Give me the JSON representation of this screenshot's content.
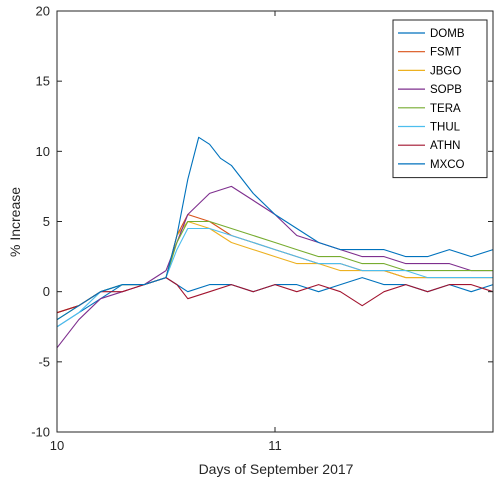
{
  "chart_data": {
    "type": "line",
    "title": "",
    "xlabel": "Days of September 2017",
    "ylabel": "% Increase",
    "xlim": [
      10,
      12
    ],
    "ylim": [
      -10,
      20
    ],
    "x_ticks": [
      {
        "value": 10,
        "label": "10"
      },
      {
        "value": 11,
        "label": "11"
      }
    ],
    "y_ticks": [
      {
        "value": -10,
        "label": "-10"
      },
      {
        "value": -5,
        "label": "-5"
      },
      {
        "value": 0,
        "label": "0"
      },
      {
        "value": 5,
        "label": "5"
      },
      {
        "value": 10,
        "label": "10"
      },
      {
        "value": 15,
        "label": "15"
      },
      {
        "value": 20,
        "label": "20"
      }
    ],
    "grid": false,
    "legend_position": "top-right",
    "series": [
      {
        "name": "DOMB",
        "color": "#0072BD",
        "x": [
          10.0,
          10.1,
          10.2,
          10.3,
          10.4,
          10.5,
          10.55,
          10.6,
          10.7,
          10.8,
          10.9,
          11.0,
          11.1,
          11.2,
          11.3,
          11.4,
          11.5,
          11.6,
          11.7,
          11.8,
          11.9,
          12.0
        ],
        "y": [
          -2.5,
          -1.5,
          -0.5,
          0.5,
          0.5,
          1.0,
          0.5,
          0.0,
          0.5,
          0.5,
          0.0,
          0.5,
          0.5,
          0.0,
          0.5,
          1.0,
          0.5,
          0.5,
          0.0,
          0.5,
          0.0,
          0.5
        ]
      },
      {
        "name": "FSMT",
        "color": "#D95319",
        "x": [
          10.0,
          10.1,
          10.2,
          10.3,
          10.4,
          10.5,
          10.55,
          10.6,
          10.7,
          10.8,
          10.9,
          11.0,
          11.1,
          11.2,
          11.3,
          11.4,
          11.5,
          11.6,
          11.7,
          11.8,
          11.9,
          12.0
        ],
        "y": [
          -1.5,
          -1.0,
          0.0,
          0.5,
          0.5,
          1.0,
          4.0,
          5.5,
          5.0,
          4.0,
          3.5,
          3.0,
          2.5,
          2.0,
          2.0,
          1.5,
          1.5,
          1.0,
          1.0,
          1.0,
          1.0,
          1.0
        ]
      },
      {
        "name": "JBGO",
        "color": "#EDB120",
        "x": [
          10.0,
          10.1,
          10.2,
          10.3,
          10.4,
          10.5,
          10.55,
          10.6,
          10.7,
          10.8,
          10.9,
          11.0,
          11.1,
          11.2,
          11.3,
          11.4,
          11.5,
          11.6,
          11.7,
          11.8,
          11.9,
          12.0
        ],
        "y": [
          -1.5,
          -1.0,
          0.0,
          0.5,
          0.5,
          1.0,
          4.0,
          5.0,
          4.5,
          3.5,
          3.0,
          2.5,
          2.0,
          2.0,
          1.5,
          1.5,
          1.5,
          1.0,
          1.0,
          1.0,
          1.0,
          1.0
        ]
      },
      {
        "name": "SOPB",
        "color": "#7E2F8E",
        "x": [
          10.0,
          10.1,
          10.2,
          10.3,
          10.4,
          10.5,
          10.55,
          10.6,
          10.7,
          10.8,
          10.9,
          11.0,
          11.1,
          11.2,
          11.3,
          11.4,
          11.5,
          11.6,
          11.7,
          11.8,
          11.9,
          12.0
        ],
        "y": [
          -4.0,
          -2.0,
          -0.5,
          0.0,
          0.5,
          1.5,
          3.5,
          5.5,
          7.0,
          7.5,
          6.5,
          5.5,
          4.0,
          3.5,
          3.0,
          2.5,
          2.5,
          2.0,
          2.0,
          2.0,
          1.5,
          1.5
        ]
      },
      {
        "name": "TERA",
        "color": "#77AC30",
        "x": [
          10.0,
          10.1,
          10.2,
          10.3,
          10.4,
          10.5,
          10.55,
          10.6,
          10.7,
          10.8,
          10.9,
          11.0,
          11.1,
          11.2,
          11.3,
          11.4,
          11.5,
          11.6,
          11.7,
          11.8,
          11.9,
          12.0
        ],
        "y": [
          -2.0,
          -1.0,
          0.0,
          0.5,
          0.5,
          1.0,
          3.5,
          5.0,
          5.0,
          4.5,
          4.0,
          3.5,
          3.0,
          2.5,
          2.5,
          2.0,
          2.0,
          1.5,
          1.5,
          1.5,
          1.5,
          1.5
        ]
      },
      {
        "name": "THUL",
        "color": "#4DBEEE",
        "x": [
          10.0,
          10.1,
          10.2,
          10.3,
          10.4,
          10.5,
          10.55,
          10.6,
          10.7,
          10.8,
          10.9,
          11.0,
          11.1,
          11.2,
          11.3,
          11.4,
          11.5,
          11.6,
          11.7,
          11.8,
          11.9,
          12.0
        ],
        "y": [
          -2.5,
          -1.5,
          0.0,
          0.5,
          0.5,
          1.0,
          3.0,
          4.5,
          4.5,
          4.0,
          3.5,
          3.0,
          2.5,
          2.0,
          2.0,
          1.5,
          1.5,
          1.5,
          1.0,
          1.0,
          1.0,
          1.0
        ]
      },
      {
        "name": "ATHN",
        "color": "#A2142F",
        "x": [
          10.0,
          10.1,
          10.2,
          10.3,
          10.4,
          10.5,
          10.55,
          10.6,
          10.7,
          10.8,
          10.9,
          11.0,
          11.1,
          11.2,
          11.3,
          11.4,
          11.5,
          11.6,
          11.7,
          11.8,
          11.9,
          12.0
        ],
        "y": [
          -1.5,
          -1.0,
          0.0,
          0.0,
          0.5,
          1.0,
          0.5,
          -0.5,
          0.0,
          0.5,
          0.0,
          0.5,
          0.0,
          0.5,
          0.0,
          -1.0,
          0.0,
          0.5,
          0.0,
          0.5,
          0.5,
          0.0
        ]
      },
      {
        "name": "MXCO",
        "color": "#0072BD",
        "x": [
          10.0,
          10.1,
          10.2,
          10.3,
          10.4,
          10.5,
          10.55,
          10.6,
          10.65,
          10.7,
          10.75,
          10.8,
          10.9,
          11.0,
          11.1,
          11.2,
          11.3,
          11.4,
          11.5,
          11.6,
          11.7,
          11.8,
          11.9,
          12.0
        ],
        "y": [
          -2.0,
          -1.0,
          0.0,
          0.5,
          0.5,
          1.0,
          4.0,
          8.0,
          11.0,
          10.5,
          9.5,
          9.0,
          7.0,
          5.5,
          4.5,
          3.5,
          3.0,
          3.0,
          3.0,
          2.5,
          2.5,
          3.0,
          2.5,
          3.0
        ]
      }
    ]
  }
}
